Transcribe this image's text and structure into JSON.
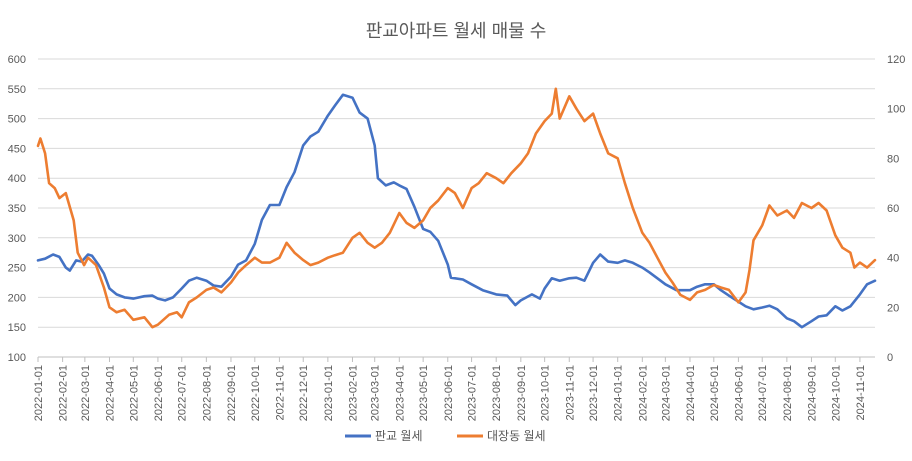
{
  "chart_data": {
    "type": "line",
    "title": "판교아파트 월세 매물 수",
    "xlabel": "",
    "ylabel": "",
    "y_left": {
      "min": 100,
      "max": 600,
      "ticks": [
        "100",
        "150",
        "200",
        "250",
        "300",
        "350",
        "400",
        "450",
        "500",
        "550",
        "600"
      ]
    },
    "y_right": {
      "min": 0,
      "max": 120,
      "ticks": [
        "0",
        "20",
        "40",
        "60",
        "80",
        "100",
        "120"
      ]
    },
    "grid": true,
    "legend_position": "bottom",
    "x_ticks": [
      "2022-01-01",
      "2022-02-01",
      "2022-03-01",
      "2022-04-01",
      "2022-05-01",
      "2022-06-01",
      "2022-07-01",
      "2022-08-01",
      "2022-09-01",
      "2022-10-01",
      "2022-11-01",
      "2022-12-01",
      "2023-01-01",
      "2023-02-01",
      "2023-03-01",
      "2023-04-01",
      "2023-05-01",
      "2023-06-01",
      "2023-07-01",
      "2023-08-01",
      "2023-09-01",
      "2023-10-01",
      "2023-11-01",
      "2023-12-01",
      "2024-01-01",
      "2024-02-01",
      "2024-03-01",
      "2024-04-01",
      "2024-05-01",
      "2024-06-01",
      "2024-07-01",
      "2024-08-01",
      "2024-09-01",
      "2024-10-01",
      "2024-11-01"
    ],
    "x_range": [
      "2022-01-01",
      "2024-11-20"
    ],
    "series": [
      {
        "name": "판교 월세",
        "axis": "left",
        "color": "#4472C4",
        "points": [
          [
            "2022-01-01",
            262
          ],
          [
            "2022-01-10",
            265
          ],
          [
            "2022-01-20",
            272
          ],
          [
            "2022-01-28",
            268
          ],
          [
            "2022-02-05",
            250
          ],
          [
            "2022-02-10",
            245
          ],
          [
            "2022-02-18",
            262
          ],
          [
            "2022-02-25",
            260
          ],
          [
            "2022-03-05",
            272
          ],
          [
            "2022-03-10",
            270
          ],
          [
            "2022-03-18",
            255
          ],
          [
            "2022-03-25",
            240
          ],
          [
            "2022-04-01",
            215
          ],
          [
            "2022-04-10",
            205
          ],
          [
            "2022-04-20",
            200
          ],
          [
            "2022-05-01",
            198
          ],
          [
            "2022-05-15",
            202
          ],
          [
            "2022-05-25",
            203
          ],
          [
            "2022-06-01",
            198
          ],
          [
            "2022-06-10",
            195
          ],
          [
            "2022-06-20",
            200
          ],
          [
            "2022-07-01",
            215
          ],
          [
            "2022-07-10",
            228
          ],
          [
            "2022-07-20",
            233
          ],
          [
            "2022-08-01",
            228
          ],
          [
            "2022-08-10",
            220
          ],
          [
            "2022-08-20",
            218
          ],
          [
            "2022-09-01",
            235
          ],
          [
            "2022-09-10",
            255
          ],
          [
            "2022-09-20",
            262
          ],
          [
            "2022-10-01",
            290
          ],
          [
            "2022-10-10",
            330
          ],
          [
            "2022-10-20",
            355
          ],
          [
            "2022-11-01",
            355
          ],
          [
            "2022-11-10",
            385
          ],
          [
            "2022-11-20",
            410
          ],
          [
            "2022-12-01",
            455
          ],
          [
            "2022-12-10",
            470
          ],
          [
            "2022-12-20",
            478
          ],
          [
            "2023-01-01",
            505
          ],
          [
            "2023-01-10",
            522
          ],
          [
            "2023-01-20",
            540
          ],
          [
            "2023-02-01",
            535
          ],
          [
            "2023-02-10",
            510
          ],
          [
            "2023-02-20",
            500
          ],
          [
            "2023-03-01",
            455
          ],
          [
            "2023-03-05",
            400
          ],
          [
            "2023-03-15",
            388
          ],
          [
            "2023-03-25",
            393
          ],
          [
            "2023-04-01",
            388
          ],
          [
            "2023-04-10",
            382
          ],
          [
            "2023-04-20",
            352
          ],
          [
            "2023-05-01",
            315
          ],
          [
            "2023-05-10",
            310
          ],
          [
            "2023-05-20",
            295
          ],
          [
            "2023-06-01",
            255
          ],
          [
            "2023-06-05",
            233
          ],
          [
            "2023-06-20",
            230
          ],
          [
            "2023-07-01",
            222
          ],
          [
            "2023-07-15",
            212
          ],
          [
            "2023-08-01",
            205
          ],
          [
            "2023-08-15",
            203
          ],
          [
            "2023-08-25",
            187
          ],
          [
            "2023-09-01",
            195
          ],
          [
            "2023-09-15",
            205
          ],
          [
            "2023-09-25",
            198
          ],
          [
            "2023-10-01",
            215
          ],
          [
            "2023-10-10",
            232
          ],
          [
            "2023-10-20",
            228
          ],
          [
            "2023-11-01",
            232
          ],
          [
            "2023-11-10",
            233
          ],
          [
            "2023-11-20",
            228
          ],
          [
            "2023-12-01",
            258
          ],
          [
            "2023-12-10",
            272
          ],
          [
            "2023-12-20",
            260
          ],
          [
            "2024-01-01",
            258
          ],
          [
            "2024-01-10",
            262
          ],
          [
            "2024-01-20",
            258
          ],
          [
            "2024-02-01",
            250
          ],
          [
            "2024-02-10",
            242
          ],
          [
            "2024-02-20",
            232
          ],
          [
            "2024-03-01",
            222
          ],
          [
            "2024-03-15",
            212
          ],
          [
            "2024-04-01",
            212
          ],
          [
            "2024-04-10",
            218
          ],
          [
            "2024-04-20",
            222
          ],
          [
            "2024-05-01",
            222
          ],
          [
            "2024-05-10",
            212
          ],
          [
            "2024-05-20",
            203
          ],
          [
            "2024-06-01",
            193
          ],
          [
            "2024-06-10",
            185
          ],
          [
            "2024-06-20",
            180
          ],
          [
            "2024-07-01",
            183
          ],
          [
            "2024-07-10",
            186
          ],
          [
            "2024-07-20",
            180
          ],
          [
            "2024-08-01",
            165
          ],
          [
            "2024-08-10",
            160
          ],
          [
            "2024-08-20",
            150
          ],
          [
            "2024-09-01",
            160
          ],
          [
            "2024-09-10",
            168
          ],
          [
            "2024-09-20",
            170
          ],
          [
            "2024-10-01",
            185
          ],
          [
            "2024-10-10",
            178
          ],
          [
            "2024-10-20",
            185
          ],
          [
            "2024-11-01",
            205
          ],
          [
            "2024-11-10",
            222
          ],
          [
            "2024-11-20",
            228
          ]
        ]
      },
      {
        "name": "대장동 월세",
        "axis": "right",
        "color": "#ED7D31",
        "points": [
          [
            "2022-01-01",
            85
          ],
          [
            "2022-01-04",
            88
          ],
          [
            "2022-01-10",
            82
          ],
          [
            "2022-01-15",
            70
          ],
          [
            "2022-01-22",
            68
          ],
          [
            "2022-01-28",
            64
          ],
          [
            "2022-02-05",
            66
          ],
          [
            "2022-02-15",
            55
          ],
          [
            "2022-02-20",
            42
          ],
          [
            "2022-02-28",
            37
          ],
          [
            "2022-03-05",
            40
          ],
          [
            "2022-03-15",
            37
          ],
          [
            "2022-03-25",
            28
          ],
          [
            "2022-04-01",
            20
          ],
          [
            "2022-04-10",
            18
          ],
          [
            "2022-04-20",
            19
          ],
          [
            "2022-05-01",
            15
          ],
          [
            "2022-05-15",
            16
          ],
          [
            "2022-05-25",
            12
          ],
          [
            "2022-06-01",
            13
          ],
          [
            "2022-06-15",
            17
          ],
          [
            "2022-06-25",
            18
          ],
          [
            "2022-07-01",
            16
          ],
          [
            "2022-07-10",
            22
          ],
          [
            "2022-07-20",
            24
          ],
          [
            "2022-08-01",
            27
          ],
          [
            "2022-08-10",
            28
          ],
          [
            "2022-08-20",
            26
          ],
          [
            "2022-09-01",
            30
          ],
          [
            "2022-09-10",
            34
          ],
          [
            "2022-09-20",
            37
          ],
          [
            "2022-10-01",
            40
          ],
          [
            "2022-10-10",
            38
          ],
          [
            "2022-10-20",
            38
          ],
          [
            "2022-11-01",
            40
          ],
          [
            "2022-11-10",
            46
          ],
          [
            "2022-11-20",
            42
          ],
          [
            "2022-12-01",
            39
          ],
          [
            "2022-12-10",
            37
          ],
          [
            "2022-12-20",
            38
          ],
          [
            "2023-01-01",
            40
          ],
          [
            "2023-01-10",
            41
          ],
          [
            "2023-01-20",
            42
          ],
          [
            "2023-02-01",
            48
          ],
          [
            "2023-02-10",
            50
          ],
          [
            "2023-02-20",
            46
          ],
          [
            "2023-03-01",
            44
          ],
          [
            "2023-03-10",
            46
          ],
          [
            "2023-03-20",
            50
          ],
          [
            "2023-04-01",
            58
          ],
          [
            "2023-04-10",
            54
          ],
          [
            "2023-04-20",
            52
          ],
          [
            "2023-05-01",
            55
          ],
          [
            "2023-05-10",
            60
          ],
          [
            "2023-05-20",
            63
          ],
          [
            "2023-06-01",
            68
          ],
          [
            "2023-06-10",
            66
          ],
          [
            "2023-06-20",
            60
          ],
          [
            "2023-07-01",
            68
          ],
          [
            "2023-07-10",
            70
          ],
          [
            "2023-07-20",
            74
          ],
          [
            "2023-08-01",
            72
          ],
          [
            "2023-08-10",
            70
          ],
          [
            "2023-08-20",
            74
          ],
          [
            "2023-09-01",
            78
          ],
          [
            "2023-09-10",
            82
          ],
          [
            "2023-09-20",
            90
          ],
          [
            "2023-10-01",
            95
          ],
          [
            "2023-10-10",
            98
          ],
          [
            "2023-10-15",
            108
          ],
          [
            "2023-10-20",
            96
          ],
          [
            "2023-11-01",
            105
          ],
          [
            "2023-11-10",
            100
          ],
          [
            "2023-11-20",
            95
          ],
          [
            "2023-12-01",
            98
          ],
          [
            "2023-12-10",
            90
          ],
          [
            "2023-12-20",
            82
          ],
          [
            "2024-01-01",
            80
          ],
          [
            "2024-01-10",
            70
          ],
          [
            "2024-01-20",
            60
          ],
          [
            "2024-02-01",
            50
          ],
          [
            "2024-02-10",
            46
          ],
          [
            "2024-02-20",
            40
          ],
          [
            "2024-03-01",
            34
          ],
          [
            "2024-03-10",
            30
          ],
          [
            "2024-03-20",
            25
          ],
          [
            "2024-04-01",
            23
          ],
          [
            "2024-04-10",
            26
          ],
          [
            "2024-04-20",
            27
          ],
          [
            "2024-05-01",
            29
          ],
          [
            "2024-05-10",
            28
          ],
          [
            "2024-05-20",
            27
          ],
          [
            "2024-06-01",
            22
          ],
          [
            "2024-06-10",
            26
          ],
          [
            "2024-06-15",
            35
          ],
          [
            "2024-06-20",
            47
          ],
          [
            "2024-07-01",
            53
          ],
          [
            "2024-07-10",
            61
          ],
          [
            "2024-07-20",
            57
          ],
          [
            "2024-08-01",
            59
          ],
          [
            "2024-08-10",
            56
          ],
          [
            "2024-08-20",
            62
          ],
          [
            "2024-09-01",
            60
          ],
          [
            "2024-09-10",
            62
          ],
          [
            "2024-09-20",
            59
          ],
          [
            "2024-10-01",
            49
          ],
          [
            "2024-10-10",
            44
          ],
          [
            "2024-10-20",
            42
          ],
          [
            "2024-10-25",
            36
          ],
          [
            "2024-11-01",
            38
          ],
          [
            "2024-11-10",
            36
          ],
          [
            "2024-11-20",
            39
          ]
        ]
      }
    ]
  }
}
